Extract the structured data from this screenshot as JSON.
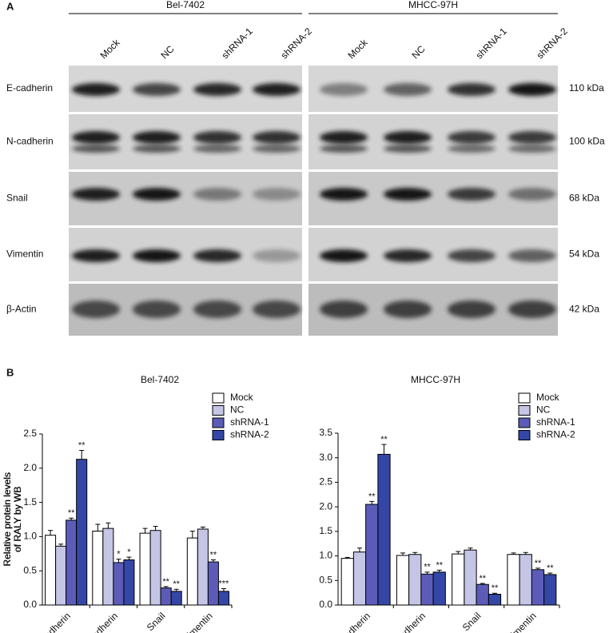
{
  "panel_a": {
    "label": "A",
    "cell_lines": [
      "Bel-7402",
      "MHCC-97H"
    ],
    "lanes": [
      "Mock",
      "NC",
      "shRNA-1",
      "shRNA-2"
    ],
    "proteins": [
      {
        "name": "E-cadherin",
        "size": "110 kDa"
      },
      {
        "name": "N-cadherin",
        "size": "100 kDa"
      },
      {
        "name": "Snail",
        "size": "68 kDa"
      },
      {
        "name": "Vimentin",
        "size": "54 kDa"
      },
      {
        "name": "β-Actin",
        "size": "42 kDa"
      }
    ]
  },
  "panel_b": {
    "label": "B"
  },
  "chart_data": [
    {
      "type": "bar",
      "title": "Bel-7402",
      "ylabel": [
        "Relative protein levels",
        "of RALY by WB"
      ],
      "categories": [
        "E-cadherin",
        "N-cadherin",
        "Snail",
        "Vimentin"
      ],
      "series": [
        {
          "name": "Mock",
          "color": "#ffffff",
          "values": [
            1.02,
            1.08,
            1.05,
            0.98
          ],
          "errors": [
            0.07,
            0.1,
            0.07,
            0.1
          ],
          "significance": [
            null,
            null,
            null,
            null
          ]
        },
        {
          "name": "NC",
          "color": "#c5c5e6",
          "values": [
            0.86,
            1.12,
            1.09,
            1.11
          ],
          "errors": [
            0.03,
            0.08,
            0.06,
            0.03
          ],
          "significance": [
            null,
            null,
            null,
            null
          ]
        },
        {
          "name": "shRNA-1",
          "color": "#5c5cb8",
          "values": [
            1.24,
            0.62,
            0.25,
            0.63
          ],
          "errors": [
            0.03,
            0.05,
            0.02,
            0.03
          ],
          "significance": [
            "**",
            "*",
            "**",
            "**"
          ]
        },
        {
          "name": "shRNA-2",
          "color": "#3447a6",
          "values": [
            2.13,
            0.66,
            0.2,
            0.2
          ],
          "errors": [
            0.13,
            0.04,
            0.03,
            0.04
          ],
          "significance": [
            "**",
            "*",
            "**",
            "***"
          ]
        }
      ],
      "ylim": [
        0,
        2.5
      ],
      "yticks": [
        {
          "value": 0,
          "label": "0.0"
        },
        0.5,
        {
          "value": 1,
          "label": "1.0"
        },
        1.5,
        {
          "value": 2,
          "label": "2.0"
        },
        2.5
      ],
      "grid": false,
      "legend": "top-right"
    },
    {
      "type": "bar",
      "title": "MHCC-97H",
      "ylabel": [
        "Relative protein levels",
        "of RALY by WB"
      ],
      "categories": [
        "E-cadherin",
        "N-cadherin",
        "Snail",
        "Vimentin"
      ],
      "series": [
        {
          "name": "Mock",
          "color": "#ffffff",
          "values": [
            0.95,
            1.01,
            1.04,
            1.03
          ],
          "errors": [
            0.02,
            0.05,
            0.05,
            0.03
          ],
          "significance": [
            null,
            null,
            null,
            null
          ]
        },
        {
          "name": "NC",
          "color": "#c5c5e6",
          "values": [
            1.08,
            1.03,
            1.12,
            1.03
          ],
          "errors": [
            0.08,
            0.04,
            0.04,
            0.04
          ],
          "significance": [
            null,
            null,
            null,
            null
          ]
        },
        {
          "name": "shRNA-1",
          "color": "#5c5cb8",
          "values": [
            2.05,
            0.63,
            0.42,
            0.72
          ],
          "errors": [
            0.06,
            0.04,
            0.02,
            0.03
          ],
          "significance": [
            "**",
            "**",
            "**",
            "**"
          ]
        },
        {
          "name": "shRNA-2",
          "color": "#3447a6",
          "values": [
            3.07,
            0.67,
            0.22,
            0.62
          ],
          "errors": [
            0.2,
            0.04,
            0.02,
            0.03
          ],
          "significance": [
            "**",
            "**",
            "**",
            "**"
          ]
        }
      ],
      "ylim": [
        0,
        3.5
      ],
      "yticks": [
        {
          "value": 0,
          "label": "0.0"
        },
        0.5,
        {
          "value": 1,
          "label": "1.0"
        },
        1.5,
        {
          "value": 2,
          "label": "2.0"
        },
        2.5,
        {
          "value": 3,
          "label": "3.0"
        },
        3.5
      ],
      "grid": false,
      "legend": "top-right"
    }
  ]
}
